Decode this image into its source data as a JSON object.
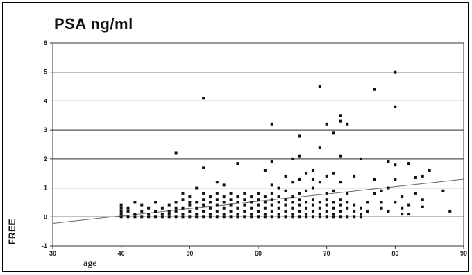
{
  "chart_data": {
    "type": "scatter",
    "title": "PSA ng/ml",
    "xlabel": "age",
    "ylabel": "FREE",
    "xlim": [
      30,
      90
    ],
    "ylim": [
      -1,
      6
    ],
    "xticks": [
      30,
      40,
      50,
      60,
      70,
      80,
      90
    ],
    "yticks": [
      -1,
      0,
      1,
      2,
      3,
      4,
      5,
      6
    ],
    "grid_y": true,
    "trendline": {
      "x": [
        30,
        90
      ],
      "y": [
        -0.22,
        1.3
      ]
    },
    "colors": {
      "points": "#111111",
      "grid": "#555555",
      "trend": "#666666"
    },
    "points": [
      [
        40,
        0.0
      ],
      [
        40,
        0.1
      ],
      [
        40,
        0.2
      ],
      [
        40,
        0.3
      ],
      [
        40,
        0.4
      ],
      [
        41,
        0.0
      ],
      [
        41,
        0.2
      ],
      [
        41,
        0.3
      ],
      [
        42,
        0.1
      ],
      [
        42,
        0.5
      ],
      [
        42,
        0.0
      ],
      [
        43,
        0.2
      ],
      [
        43,
        0.0
      ],
      [
        43,
        0.4
      ],
      [
        44,
        0.1
      ],
      [
        44,
        0.3
      ],
      [
        44,
        0.0
      ],
      [
        45,
        0.2
      ],
      [
        45,
        0.5
      ],
      [
        45,
        0.0
      ],
      [
        46,
        0.1
      ],
      [
        46,
        0.3
      ],
      [
        46,
        0.0
      ],
      [
        47,
        0.2
      ],
      [
        47,
        0.4
      ],
      [
        47,
        0.0
      ],
      [
        47,
        0.1
      ],
      [
        48,
        0.0
      ],
      [
        48,
        0.2
      ],
      [
        48,
        0.3
      ],
      [
        48,
        0.5
      ],
      [
        48,
        2.2
      ],
      [
        49,
        0.0
      ],
      [
        49,
        0.1
      ],
      [
        49,
        0.3
      ],
      [
        49,
        0.6
      ],
      [
        49,
        0.8
      ],
      [
        50,
        0.0
      ],
      [
        50,
        0.2
      ],
      [
        50,
        0.4
      ],
      [
        50,
        0.5
      ],
      [
        50,
        0.7
      ],
      [
        51,
        0.0
      ],
      [
        51,
        0.1
      ],
      [
        51,
        0.3
      ],
      [
        51,
        0.5
      ],
      [
        51,
        1.0
      ],
      [
        52,
        0.0
      ],
      [
        52,
        0.2
      ],
      [
        52,
        0.4
      ],
      [
        52,
        0.6
      ],
      [
        52,
        0.8
      ],
      [
        52,
        1.7
      ],
      [
        52,
        4.1
      ],
      [
        53,
        0.0
      ],
      [
        53,
        0.1
      ],
      [
        53,
        0.3
      ],
      [
        53,
        0.5
      ],
      [
        53,
        0.7
      ],
      [
        54,
        0.0
      ],
      [
        54,
        0.2
      ],
      [
        54,
        0.4
      ],
      [
        54,
        0.6
      ],
      [
        54,
        0.8
      ],
      [
        54,
        1.2
      ],
      [
        55,
        0.0
      ],
      [
        55,
        0.1
      ],
      [
        55,
        0.3
      ],
      [
        55,
        0.5
      ],
      [
        55,
        0.7
      ],
      [
        55,
        1.1
      ],
      [
        56,
        0.0
      ],
      [
        56,
        0.2
      ],
      [
        56,
        0.4
      ],
      [
        56,
        0.6
      ],
      [
        56,
        0.8
      ],
      [
        57,
        0.0
      ],
      [
        57,
        0.1
      ],
      [
        57,
        0.3
      ],
      [
        57,
        0.5
      ],
      [
        57,
        0.7
      ],
      [
        57,
        1.85
      ],
      [
        58,
        0.0
      ],
      [
        58,
        0.2
      ],
      [
        58,
        0.4
      ],
      [
        58,
        0.6
      ],
      [
        58,
        0.8
      ],
      [
        59,
        0.0
      ],
      [
        59,
        0.1
      ],
      [
        59,
        0.3
      ],
      [
        59,
        0.5
      ],
      [
        59,
        0.7
      ],
      [
        60,
        0.0
      ],
      [
        60,
        0.2
      ],
      [
        60,
        0.4
      ],
      [
        60,
        0.6
      ],
      [
        60,
        0.8
      ],
      [
        61,
        0.0
      ],
      [
        61,
        0.1
      ],
      [
        61,
        0.3
      ],
      [
        61,
        0.5
      ],
      [
        61,
        0.7
      ],
      [
        61,
        1.6
      ],
      [
        62,
        0.0
      ],
      [
        62,
        0.2
      ],
      [
        62,
        0.4
      ],
      [
        62,
        0.6
      ],
      [
        62,
        0.8
      ],
      [
        62,
        1.1
      ],
      [
        62,
        1.9
      ],
      [
        62,
        3.2
      ],
      [
        63,
        0.0
      ],
      [
        63,
        0.1
      ],
      [
        63,
        0.3
      ],
      [
        63,
        0.5
      ],
      [
        63,
        0.7
      ],
      [
        63,
        1.0
      ],
      [
        64,
        0.0
      ],
      [
        64,
        0.2
      ],
      [
        64,
        0.4
      ],
      [
        64,
        0.6
      ],
      [
        64,
        0.9
      ],
      [
        64,
        1.4
      ],
      [
        65,
        0.0
      ],
      [
        65,
        0.1
      ],
      [
        65,
        0.3
      ],
      [
        65,
        0.5
      ],
      [
        65,
        0.7
      ],
      [
        65,
        1.2
      ],
      [
        65,
        2.0
      ],
      [
        66,
        0.0
      ],
      [
        66,
        0.2
      ],
      [
        66,
        0.4
      ],
      [
        66,
        0.6
      ],
      [
        66,
        0.8
      ],
      [
        66,
        1.3
      ],
      [
        66,
        2.1
      ],
      [
        66,
        2.8
      ],
      [
        67,
        0.0
      ],
      [
        67,
        0.1
      ],
      [
        67,
        0.3
      ],
      [
        67,
        0.5
      ],
      [
        67,
        0.9
      ],
      [
        67,
        1.5
      ],
      [
        68,
        0.0
      ],
      [
        68,
        0.2
      ],
      [
        68,
        0.4
      ],
      [
        68,
        0.6
      ],
      [
        68,
        1.0
      ],
      [
        68,
        1.6
      ],
      [
        68,
        1.3
      ],
      [
        69,
        0.0
      ],
      [
        69,
        0.1
      ],
      [
        69,
        0.3
      ],
      [
        69,
        0.5
      ],
      [
        69,
        1.2
      ],
      [
        69,
        2.4
      ],
      [
        69,
        4.5
      ],
      [
        70,
        0.0
      ],
      [
        70,
        0.2
      ],
      [
        70,
        0.4
      ],
      [
        70,
        0.6
      ],
      [
        70,
        0.8
      ],
      [
        70,
        1.4
      ],
      [
        70,
        3.2
      ],
      [
        71,
        0.0
      ],
      [
        71,
        0.1
      ],
      [
        71,
        0.3
      ],
      [
        71,
        0.5
      ],
      [
        71,
        0.9
      ],
      [
        71,
        1.5
      ],
      [
        71,
        2.9
      ],
      [
        72,
        0.0
      ],
      [
        72,
        0.2
      ],
      [
        72,
        0.4
      ],
      [
        72,
        0.6
      ],
      [
        72,
        1.2
      ],
      [
        72,
        2.1
      ],
      [
        72,
        3.5
      ],
      [
        72,
        3.3
      ],
      [
        73,
        0.0
      ],
      [
        73,
        0.3
      ],
      [
        73,
        0.5
      ],
      [
        73,
        0.8
      ],
      [
        73,
        3.2
      ],
      [
        74,
        0.0
      ],
      [
        74,
        0.2
      ],
      [
        74,
        0.4
      ],
      [
        74,
        1.4
      ],
      [
        75,
        0.0
      ],
      [
        75,
        0.1
      ],
      [
        75,
        0.3
      ],
      [
        75,
        2.0
      ],
      [
        76,
        0.2
      ],
      [
        76,
        0.5
      ],
      [
        77,
        0.8
      ],
      [
        77,
        1.3
      ],
      [
        77,
        4.4
      ],
      [
        78,
        0.9
      ],
      [
        78,
        0.3
      ],
      [
        78,
        0.5
      ],
      [
        79,
        1.9
      ],
      [
        79,
        0.2
      ],
      [
        79,
        1.0
      ],
      [
        80,
        1.8
      ],
      [
        80,
        0.5
      ],
      [
        80,
        1.3
      ],
      [
        80,
        3.8
      ],
      [
        80,
        5.0
      ],
      [
        81,
        0.1
      ],
      [
        81,
        0.3
      ],
      [
        81,
        0.7
      ],
      [
        82,
        1.85
      ],
      [
        82,
        0.4
      ],
      [
        82,
        0.1
      ],
      [
        83,
        1.35
      ],
      [
        83,
        0.8
      ],
      [
        84,
        1.4
      ],
      [
        84,
        0.6
      ],
      [
        84,
        0.35
      ],
      [
        85,
        1.6
      ],
      [
        87,
        0.9
      ],
      [
        88,
        0.2
      ]
    ]
  }
}
